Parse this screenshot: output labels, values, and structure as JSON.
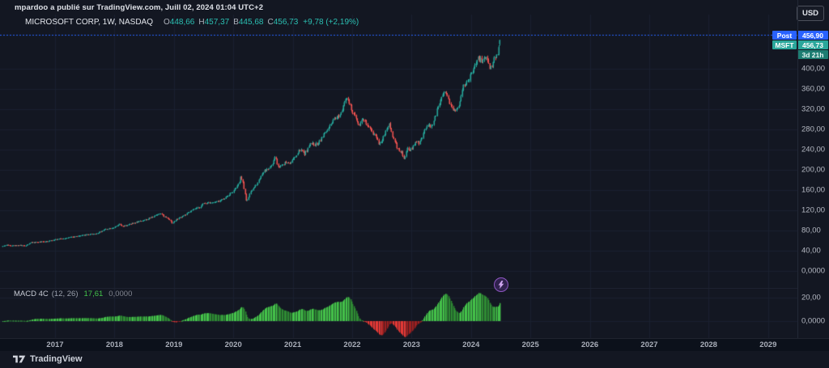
{
  "attribution": {
    "text": "mpardoo a publié sur TradingView.com, Juill 02, 2024 01:04 UTC+2"
  },
  "symbol_legend": {
    "title": "MICROSOFT CORP, 1W, NASDAQ",
    "ohlc": [
      {
        "label": "O",
        "value": "448,66"
      },
      {
        "label": "H",
        "value": "457,37"
      },
      {
        "label": "B",
        "value": "445,68"
      },
      {
        "label": "C",
        "value": "456,73"
      }
    ],
    "change": "+9,78 (+2,19%)"
  },
  "indicator_legend": {
    "name": "MACD 4C",
    "params": "(12, 26)",
    "value": "17,61",
    "value2": "0,0000"
  },
  "currency_button": "USD",
  "price_labels": {
    "post": {
      "tag": "Post",
      "price": "456,90"
    },
    "last": {
      "tag": "MSFT",
      "price": "456,73",
      "countdown": "3d 21h"
    }
  },
  "price_axis": {
    "main_ticks": [
      {
        "price": 400,
        "label": "400,00"
      },
      {
        "price": 360,
        "label": "360,00"
      },
      {
        "price": 320,
        "label": "320,00"
      },
      {
        "price": 280,
        "label": "280,00"
      },
      {
        "price": 240,
        "label": "240,00"
      },
      {
        "price": 200,
        "label": "200,00"
      },
      {
        "price": 160,
        "label": "160,00"
      },
      {
        "price": 120,
        "label": "120,00"
      },
      {
        "price": 80,
        "label": "80,00"
      },
      {
        "price": 40,
        "label": "40,00"
      },
      {
        "price": 0,
        "label": "0,0000"
      }
    ],
    "macd_ticks": [
      {
        "value": 20,
        "label": "20,00"
      },
      {
        "value": 0,
        "label": "0,0000"
      }
    ]
  },
  "time_axis": {
    "years": [
      "2017",
      "2018",
      "2019",
      "2020",
      "2021",
      "2022",
      "2023",
      "2024",
      "2025",
      "2026",
      "2027",
      "2028",
      "2029"
    ]
  },
  "footer": {
    "brand": "TradingView"
  },
  "colors": {
    "background": "#131722",
    "up": "#26a69a",
    "down": "#ef5350",
    "post_line_blue": "#2962ff",
    "macd_green_bright": "#45c24a",
    "macd_green_dark": "#2e8b33",
    "macd_red_bright": "#e53935",
    "macd_red_dark": "#9e2020",
    "grid": "#1b2130"
  },
  "chart_data": {
    "type": "candlestick",
    "title": "MICROSOFT CORP, 1W, NASDAQ",
    "timeframe": "1W",
    "currency": "USD",
    "last_bar": {
      "open": 448.66,
      "high": 457.37,
      "low": 445.68,
      "close": 456.73,
      "change": 9.78,
      "change_pct": 2.19
    },
    "post_market_price": 456.9,
    "bar_close_countdown": "3d 21h",
    "y_axis": {
      "ticks": [
        400,
        360,
        320,
        280,
        240,
        200,
        160,
        120,
        80,
        40,
        0
      ],
      "visible_min": 0,
      "visible_max": 470
    },
    "x_axis": {
      "start": 2016.12,
      "end": 2024.51,
      "tick_years": [
        2017,
        2018,
        2019,
        2020,
        2021,
        2022,
        2023,
        2024,
        2025,
        2026,
        2027,
        2028,
        2029
      ]
    },
    "indicator": {
      "name": "MACD 4C",
      "fast": 12,
      "slow": 26,
      "current": 17.61,
      "axis_ticks": [
        20,
        0
      ]
    },
    "price_anchors": [
      [
        2016.12,
        49.0
      ],
      [
        2016.18,
        51.5
      ],
      [
        2016.3,
        50.3
      ],
      [
        2016.42,
        51.0
      ],
      [
        2016.49,
        49.5
      ],
      [
        2016.6,
        56.5
      ],
      [
        2016.75,
        57.5
      ],
      [
        2016.9,
        59.5
      ],
      [
        2017.0,
        62.5
      ],
      [
        2017.15,
        64.5
      ],
      [
        2017.3,
        67.5
      ],
      [
        2017.45,
        70.0
      ],
      [
        2017.55,
        72.5
      ],
      [
        2017.7,
        74.0
      ],
      [
        2017.85,
        83.0
      ],
      [
        2018.0,
        86.0
      ],
      [
        2018.08,
        92.0
      ],
      [
        2018.14,
        88.0
      ],
      [
        2018.25,
        92.0
      ],
      [
        2018.4,
        98.0
      ],
      [
        2018.55,
        102.0
      ],
      [
        2018.7,
        111.0
      ],
      [
        2018.76,
        114.5
      ],
      [
        2018.85,
        107.0
      ],
      [
        2018.92,
        103.0
      ],
      [
        2018.97,
        94.5
      ],
      [
        2019.05,
        102.5
      ],
      [
        2019.2,
        112.0
      ],
      [
        2019.35,
        123.0
      ],
      [
        2019.42,
        125.0
      ],
      [
        2019.5,
        133.5
      ],
      [
        2019.6,
        136.5
      ],
      [
        2019.65,
        135.0
      ],
      [
        2019.75,
        137.5
      ],
      [
        2019.85,
        144.0
      ],
      [
        2020.0,
        158.0
      ],
      [
        2020.08,
        170.0
      ],
      [
        2020.13,
        188.0
      ],
      [
        2020.18,
        162.0
      ],
      [
        2020.22,
        137.5
      ],
      [
        2020.3,
        158.0
      ],
      [
        2020.4,
        174.0
      ],
      [
        2020.5,
        196.0
      ],
      [
        2020.6,
        203.0
      ],
      [
        2020.67,
        213.0
      ],
      [
        2020.7,
        228.0
      ],
      [
        2020.75,
        205.0
      ],
      [
        2020.82,
        210.0
      ],
      [
        2020.88,
        215.0
      ],
      [
        2020.95,
        214.0
      ],
      [
        2021.05,
        227.0
      ],
      [
        2021.12,
        240.0
      ],
      [
        2021.2,
        232.0
      ],
      [
        2021.3,
        252.0
      ],
      [
        2021.4,
        250.0
      ],
      [
        2021.5,
        266.0
      ],
      [
        2021.6,
        282.0
      ],
      [
        2021.7,
        299.0
      ],
      [
        2021.75,
        305.0
      ],
      [
        2021.8,
        310.0
      ],
      [
        2021.87,
        337.0
      ],
      [
        2021.9,
        343.0
      ],
      [
        2021.95,
        330.0
      ],
      [
        2022.0,
        314.0
      ],
      [
        2022.07,
        300.0
      ],
      [
        2022.12,
        290.0
      ],
      [
        2022.18,
        302.0
      ],
      [
        2022.25,
        289.0
      ],
      [
        2022.33,
        274.0
      ],
      [
        2022.4,
        267.0
      ],
      [
        2022.45,
        252.0
      ],
      [
        2022.5,
        259.0
      ],
      [
        2022.58,
        282.0
      ],
      [
        2022.62,
        291.0
      ],
      [
        2022.7,
        258.0
      ],
      [
        2022.78,
        240.0
      ],
      [
        2022.83,
        235.0
      ],
      [
        2022.87,
        221.0
      ],
      [
        2022.92,
        241.0
      ],
      [
        2023.0,
        239.0
      ],
      [
        2023.07,
        258.0
      ],
      [
        2023.13,
        252.0
      ],
      [
        2023.18,
        265.0
      ],
      [
        2023.25,
        288.0
      ],
      [
        2023.33,
        286.0
      ],
      [
        2023.4,
        307.0
      ],
      [
        2023.47,
        335.0
      ],
      [
        2023.52,
        348.0
      ],
      [
        2023.55,
        359.0
      ],
      [
        2023.62,
        340.0
      ],
      [
        2023.68,
        322.0
      ],
      [
        2023.73,
        315.0
      ],
      [
        2023.8,
        331.0
      ],
      [
        2023.87,
        369.0
      ],
      [
        2023.95,
        374.0
      ],
      [
        2024.0,
        390.0
      ],
      [
        2024.05,
        403.0
      ],
      [
        2024.12,
        420.0
      ],
      [
        2024.2,
        416.0
      ],
      [
        2024.25,
        425.0
      ],
      [
        2024.32,
        400.0
      ],
      [
        2024.37,
        414.0
      ],
      [
        2024.44,
        430.0
      ],
      [
        2024.48,
        446.0
      ],
      [
        2024.51,
        456.73
      ]
    ]
  }
}
